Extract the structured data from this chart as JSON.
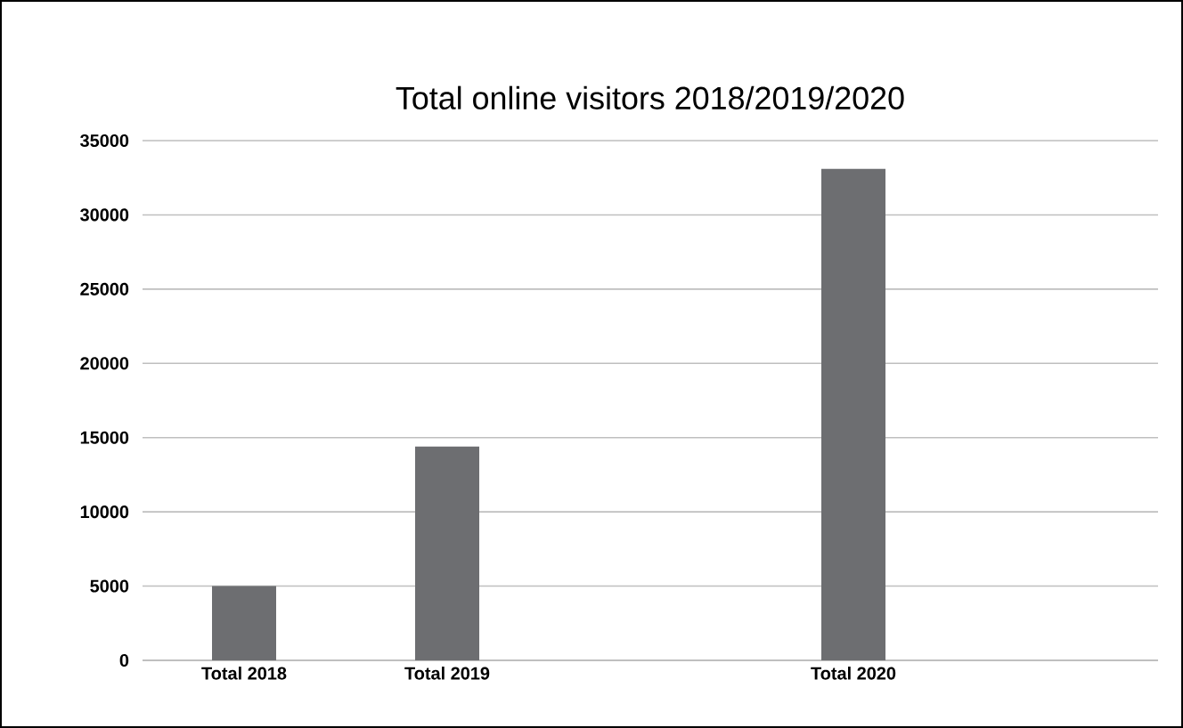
{
  "chart_data": {
    "type": "bar",
    "title": "Total online visitors 2018/2019/2020",
    "categories": [
      "Total 2018",
      "Total 2019",
      null,
      "Total 2020",
      null
    ],
    "values": [
      5000,
      14400,
      null,
      33100,
      null
    ],
    "color": "#6d6e71",
    "ylim": [
      0,
      35000
    ],
    "yticks": [
      0,
      5000,
      10000,
      15000,
      20000,
      25000,
      30000,
      35000
    ],
    "grid": "y"
  }
}
